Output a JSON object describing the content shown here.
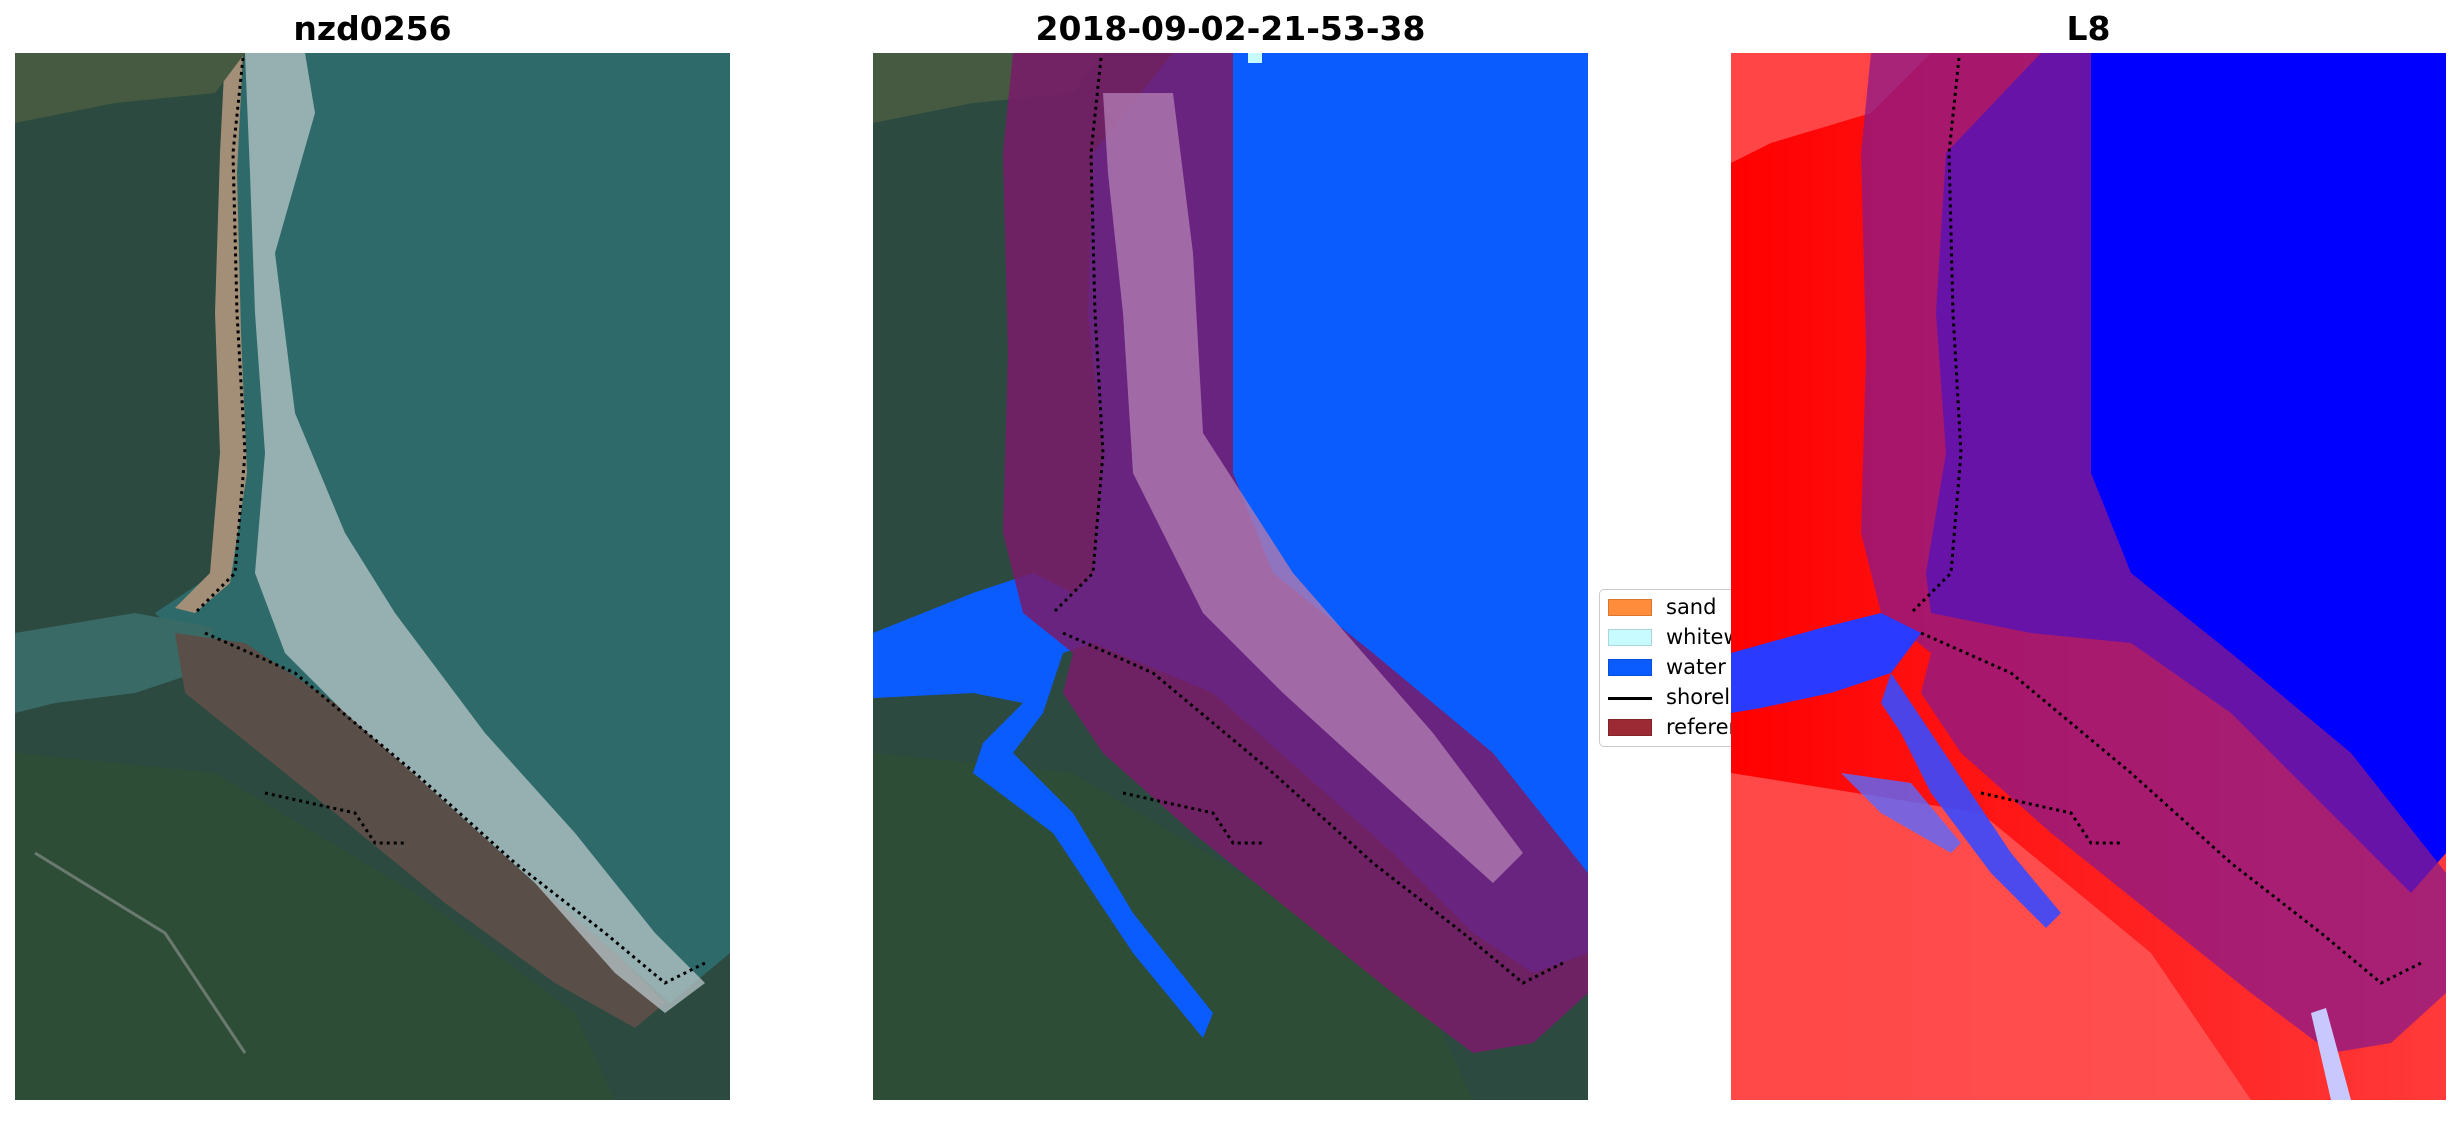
{
  "panels": [
    {
      "title": "nzd0256"
    },
    {
      "title": "2018-09-02-21-53-38"
    },
    {
      "title": "L8"
    }
  ],
  "legend": {
    "items": [
      {
        "label": "sand",
        "color": "#ff8c3a",
        "kind": "patch"
      },
      {
        "label": "whitewater",
        "color": "#c8fbff",
        "kind": "patch"
      },
      {
        "label": "water",
        "color": "#0a5cff",
        "kind": "patch"
      },
      {
        "label": "shoreline",
        "color": "#000000",
        "kind": "line"
      },
      {
        "label": "reference",
        "color": "#9b2a34",
        "kind": "patch"
      }
    ]
  },
  "colors": {
    "land": "#33554a",
    "ocean": "#2f6a6a",
    "water_class": "#0a5cff",
    "buffer": "#8b1a4a",
    "index_positive": "#ff1a1a",
    "index_negative": "#0000ff"
  }
}
